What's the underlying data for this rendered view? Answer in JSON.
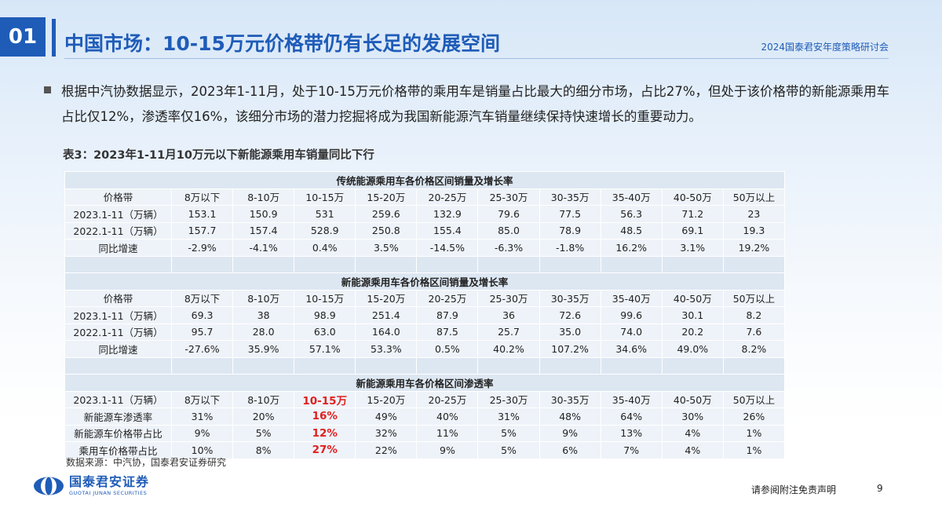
{
  "header": {
    "section_number": "01",
    "title": "中国市场：10-15万元价格带仍有长足的发展空间",
    "event": "2024国泰君安年度策略研讨会"
  },
  "body": {
    "paragraph": "根据中汽协数据显示，2023年1-11月，处于10-15万元价格带的乘用车是销量占比最大的细分市场，占比27%，但处于该价格带的新能源乘用车占比仅12%，渗透率仅16%，该细分市场的潜力挖掘将成为我国新能源汽车销量继续保持快速增长的重要动力。"
  },
  "table": {
    "caption": "表3：2023年1-11月10万元以下新能源乘用车销量同比下行",
    "sections": [
      {
        "title": "传统能源乘用车各价格区间销量及增长率",
        "rows": [
          [
            "价格带",
            "8万以下",
            "8-10万",
            "10-15万",
            "15-20万",
            "20-25万",
            "25-30万",
            "30-35万",
            "35-40万",
            "40-50万",
            "50万以上"
          ],
          [
            "2023.1-11（万辆）",
            "153.1",
            "150.9",
            "531",
            "259.6",
            "132.9",
            "79.6",
            "77.5",
            "56.3",
            "71.2",
            "23"
          ],
          [
            "2022.1-11（万辆）",
            "157.7",
            "157.4",
            "528.9",
            "250.8",
            "155.4",
            "85.0",
            "78.9",
            "48.5",
            "69.1",
            "19.3"
          ],
          [
            "同比增速",
            "-2.9%",
            "-4.1%",
            "0.4%",
            "3.5%",
            "-14.5%",
            "-6.3%",
            "-1.8%",
            "16.2%",
            "3.1%",
            "19.2%"
          ]
        ]
      },
      {
        "title": "新能源乘用车各价格区间销量及增长率",
        "rows": [
          [
            "价格带",
            "8万以下",
            "8-10万",
            "10-15万",
            "15-20万",
            "20-25万",
            "25-30万",
            "30-35万",
            "35-40万",
            "40-50万",
            "50万以上"
          ],
          [
            "2023.1-11（万辆）",
            "69.3",
            "38",
            "98.9",
            "251.4",
            "87.9",
            "36",
            "72.6",
            "99.6",
            "30.1",
            "8.2"
          ],
          [
            "2022.1-11（万辆）",
            "95.7",
            "28.0",
            "63.0",
            "164.0",
            "87.5",
            "25.7",
            "35.0",
            "74.0",
            "20.2",
            "7.6"
          ],
          [
            "同比增速",
            "-27.6%",
            "35.9%",
            "57.1%",
            "53.3%",
            "0.5%",
            "40.2%",
            "107.2%",
            "34.6%",
            "49.0%",
            "8.2%"
          ]
        ]
      },
      {
        "title": "新能源乘用车各价格区间渗透率",
        "rows": [
          [
            "2023.1-11（万辆）",
            "8万以下",
            "8-10万",
            "10-15万",
            "15-20万",
            "20-25万",
            "25-30万",
            "30-35万",
            "35-40万",
            "40-50万",
            "50万以上"
          ],
          [
            "新能源车渗透率",
            "31%",
            "20%",
            "16%",
            "49%",
            "40%",
            "31%",
            "48%",
            "64%",
            "30%",
            "26%"
          ],
          [
            "新能源车价格带占比",
            "9%",
            "5%",
            "12%",
            "32%",
            "11%",
            "5%",
            "9%",
            "13%",
            "4%",
            "1%"
          ],
          [
            "乘用车价格带占比",
            "10%",
            "8%",
            "27%",
            "22%",
            "9%",
            "5%",
            "6%",
            "7%",
            "4%",
            "1%"
          ]
        ],
        "highlight_column": 3,
        "highlight_color": "#e02020"
      }
    ],
    "source": "数据来源：中汽协，国泰君安证券研究"
  },
  "footer": {
    "logo_cn": "国泰君安证券",
    "logo_en": "GUOTAI JUNAN SECURITIES",
    "disclaimer": "请参阅附注免责声明",
    "page_number": "9"
  },
  "colors": {
    "brand": "#1f5cb8",
    "highlight": "#e02020"
  }
}
